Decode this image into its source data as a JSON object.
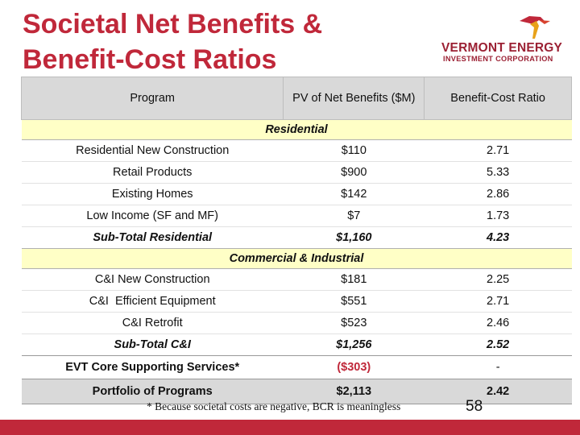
{
  "title": {
    "line1": "Societal Net Benefits &",
    "line2": "Benefit-Cost Ratios"
  },
  "logo": {
    "line1": "VERMONT ENERGY",
    "line2": "INVESTMENT CORPORATION"
  },
  "table": {
    "headers": [
      "Program",
      "PV of Net Benefits ($M)",
      "Benefit-Cost Ratio"
    ],
    "residential": {
      "label": "Residential",
      "rows": [
        [
          "Residential New Construction",
          "$110",
          "2.71"
        ],
        [
          "Retail Products",
          "$900",
          "5.33"
        ],
        [
          "Existing Homes",
          "$142",
          "2.86"
        ],
        [
          "Low Income (SF and MF)",
          "$7",
          "1.73"
        ]
      ],
      "subtotal": [
        "Sub-Total Residential",
        "$1,160",
        "4.23"
      ]
    },
    "commercial": {
      "label": "Commercial & Industrial",
      "rows": [
        [
          "C&I New Construction",
          "$181",
          "2.25"
        ],
        [
          "C&I  Efficient Equipment",
          "$551",
          "2.71"
        ],
        [
          "C&I Retrofit",
          "$523",
          "2.46"
        ]
      ],
      "subtotal": [
        "Sub-Total C&I",
        "$1,256",
        "2.52"
      ]
    },
    "core": [
      "EVT Core Supporting Services*",
      "($303)",
      "-"
    ],
    "portfolio": [
      "Portfolio of Programs",
      "$2,113",
      "2.42"
    ]
  },
  "footnote": "* Because societal costs are negative, BCR is meaningless",
  "page_number": "58",
  "colors": {
    "accent": "#c0283a",
    "header_bg": "#d9d9d9",
    "section_bg": "#ffffc6"
  }
}
